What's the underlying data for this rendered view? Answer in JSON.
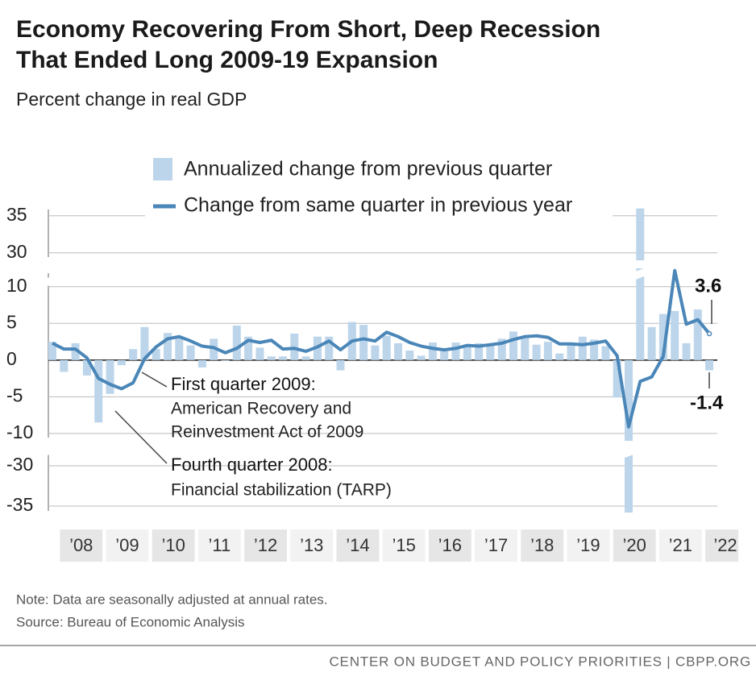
{
  "chart_data": {
    "type": "combo",
    "title": [
      "Economy Recovering From Short, Deep Recession",
      "That Ended Long 2009-19 Expansion"
    ],
    "subtitle": "Percent change in real GDP",
    "year_labels": [
      "’08",
      "’09",
      "’10",
      "’11",
      "’12",
      "’13",
      "’14",
      "’15",
      "’16",
      "’17",
      "’18",
      "’19",
      "’20",
      "’21",
      "’22"
    ],
    "series": [
      {
        "name": "Annualized change from previous quarter",
        "kind": "bar",
        "color": "#bcd5ea",
        "values": [
          2.5,
          -1.6,
          2.3,
          -2.1,
          -8.5,
          -4.6,
          -0.7,
          1.5,
          4.5,
          1.5,
          3.7,
          3.0,
          2.0,
          -1.0,
          2.9,
          -0.1,
          4.7,
          3.2,
          1.7,
          0.5,
          0.5,
          3.6,
          0.5,
          3.2,
          3.2,
          -1.4,
          5.2,
          4.8,
          2.0,
          3.3,
          2.3,
          1.3,
          0.6,
          2.4,
          1.2,
          2.4,
          2.0,
          2.3,
          2.2,
          2.9,
          3.9,
          3.3,
          2.1,
          2.5,
          0.9,
          2.4,
          3.2,
          2.8,
          1.9,
          -5.1,
          -35.8,
          36,
          4.5,
          6.3,
          6.7,
          2.3,
          6.9,
          -1.4
        ]
      },
      {
        "name": "Change from same quarter in previous year",
        "kind": "line",
        "color": "#4a86b8",
        "values": [
          2.3,
          1.5,
          1.5,
          0.3,
          -2.5,
          -3.3,
          -3.9,
          -3.1,
          0.2,
          1.8,
          2.9,
          3.2,
          2.6,
          1.9,
          1.7,
          1.0,
          1.6,
          2.7,
          2.4,
          2.7,
          1.5,
          1.6,
          1.2,
          1.8,
          2.6,
          1.4,
          2.6,
          2.9,
          2.6,
          3.8,
          3.2,
          2.4,
          1.9,
          1.6,
          1.4,
          1.6,
          2.0,
          1.9,
          2.1,
          2.3,
          2.8,
          3.2,
          3.3,
          3.1,
          2.2,
          2.2,
          2.1,
          2.3,
          2.6,
          0.6,
          -9.1,
          -2.9,
          -2.3,
          0.5,
          12.2,
          4.9,
          5.5,
          3.6
        ]
      }
    ],
    "y_segments": [
      {
        "ylim": [
          29,
          36.5
        ],
        "yticks": [
          30,
          35
        ]
      },
      {
        "ylim": [
          -11,
          12.5
        ],
        "yticks": [
          -10,
          -5,
          0,
          5,
          10
        ]
      },
      {
        "ylim": [
          -36,
          -28
        ],
        "yticks": [
          -35,
          -30
        ]
      }
    ],
    "grid": true,
    "annotations": [
      {
        "title": "First quarter 2009:",
        "lines": [
          "American Recovery and",
          "Reinvestment Act of 2009"
        ]
      },
      {
        "title": "Fourth quarter 2008:",
        "lines": [
          "Financial stabilization (TARP)"
        ]
      }
    ],
    "notes": [
      "Note: Data are seasonally adjusted at annual rates.",
      "Source: Bureau of Economic Analysis"
    ],
    "footer": "CENTER ON BUDGET AND POLICY PRIORITIES | CBPP.ORG"
  }
}
